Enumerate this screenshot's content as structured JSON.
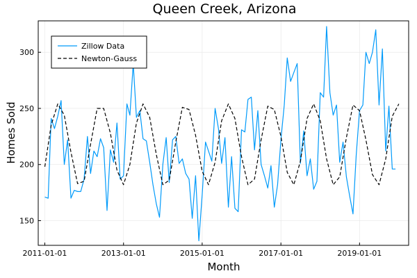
{
  "chart_data": {
    "type": "line",
    "title": "Queen Creek, Arizona",
    "xlabel": "Month",
    "ylabel": "Homes Sold",
    "x_ticks": [
      "2011-01-01",
      "2013-01-01",
      "2015-01-01",
      "2017-01-01",
      "2019-01-01"
    ],
    "y_ticks": [
      150,
      200,
      250,
      300
    ],
    "xlim": [
      "2010-11-01",
      "2020-04-01"
    ],
    "ylim": [
      128,
      328
    ],
    "grid": true,
    "legend": {
      "position": "top-left",
      "entries": [
        "Zillow Data",
        "Newton-Gauss"
      ]
    },
    "series": [
      {
        "name": "Zillow Data",
        "style": "solid",
        "color": "#009AFA",
        "x": [
          "2011-01-01",
          "2011-02-01",
          "2011-03-01",
          "2011-04-01",
          "2011-05-01",
          "2011-06-01",
          "2011-07-01",
          "2011-08-01",
          "2011-09-01",
          "2011-10-01",
          "2011-11-01",
          "2011-12-01",
          "2012-01-01",
          "2012-02-01",
          "2012-03-01",
          "2012-04-01",
          "2012-05-01",
          "2012-06-01",
          "2012-07-01",
          "2012-08-01",
          "2012-09-01",
          "2012-10-01",
          "2012-11-01",
          "2012-12-01",
          "2013-01-01",
          "2013-02-01",
          "2013-03-01",
          "2013-04-01",
          "2013-05-01",
          "2013-06-01",
          "2013-07-01",
          "2013-08-01",
          "2013-09-01",
          "2013-10-01",
          "2013-11-01",
          "2013-12-01",
          "2014-01-01",
          "2014-02-01",
          "2014-03-01",
          "2014-04-01",
          "2014-05-01",
          "2014-06-01",
          "2014-07-01",
          "2014-08-01",
          "2014-09-01",
          "2014-10-01",
          "2014-11-01",
          "2014-12-01",
          "2015-01-01",
          "2015-02-01",
          "2015-03-01",
          "2015-04-01",
          "2015-05-01",
          "2015-06-01",
          "2015-07-01",
          "2015-08-01",
          "2015-09-01",
          "2015-10-01",
          "2015-11-01",
          "2015-12-01",
          "2016-01-01",
          "2016-02-01",
          "2016-03-01",
          "2016-04-01",
          "2016-05-01",
          "2016-06-01",
          "2016-07-01",
          "2016-08-01",
          "2016-09-01",
          "2016-10-01",
          "2016-11-01",
          "2016-12-01",
          "2017-01-01",
          "2017-02-01",
          "2017-03-01",
          "2017-04-01",
          "2017-05-01",
          "2017-06-01",
          "2017-07-01",
          "2017-08-01",
          "2017-09-01",
          "2017-10-01",
          "2017-11-01",
          "2017-12-01",
          "2018-01-01",
          "2018-02-01",
          "2018-03-01",
          "2018-04-01",
          "2018-05-01",
          "2018-06-01",
          "2018-07-01",
          "2018-08-01",
          "2018-09-01",
          "2018-10-01",
          "2018-11-01",
          "2018-12-01",
          "2019-01-01",
          "2019-02-01",
          "2019-03-01",
          "2019-04-01",
          "2019-05-01",
          "2019-06-01",
          "2019-07-01",
          "2019-08-01",
          "2019-09-01",
          "2019-10-01",
          "2019-11-01",
          "2019-12-01"
        ],
        "values": [
          171,
          170,
          241,
          232,
          243,
          257,
          200,
          222,
          170,
          177,
          176,
          176,
          187,
          225,
          192,
          212,
          207,
          223,
          215,
          159,
          213,
          202,
          237,
          187,
          190,
          254,
          244,
          290,
          242,
          248,
          223,
          221,
          202,
          182,
          165,
          153,
          200,
          224,
          184,
          222,
          225,
          201,
          205,
          192,
          187,
          152,
          190,
          132,
          173,
          220,
          212,
          203,
          250,
          232,
          201,
          224,
          162,
          207,
          161,
          158,
          231,
          229,
          258,
          260,
          213,
          248,
          200,
          190,
          179,
          199,
          162,
          182,
          222,
          253,
          295,
          274,
          282,
          290,
          201,
          230,
          190,
          205,
          178,
          185,
          264,
          260,
          323,
          264,
          244,
          253,
          202,
          220,
          189,
          172,
          156,
          208,
          248,
          253,
          300,
          290,
          300,
          320,
          253,
          303,
          212,
          252,
          196,
          196
        ]
      },
      {
        "name": "Newton-Gauss",
        "style": "dashed",
        "color": "#000000",
        "x": [
          "2011-01-01",
          "2011-03-01",
          "2011-05-01",
          "2011-07-01",
          "2011-09-01",
          "2011-11-01",
          "2012-01-01",
          "2012-03-01",
          "2012-05-01",
          "2012-07-01",
          "2012-09-01",
          "2012-11-01",
          "2013-01-01",
          "2013-03-01",
          "2013-05-01",
          "2013-07-01",
          "2013-09-01",
          "2013-11-01",
          "2014-01-01",
          "2014-03-01",
          "2014-05-01",
          "2014-07-01",
          "2014-09-01",
          "2014-11-01",
          "2015-01-01",
          "2015-03-01",
          "2015-05-01",
          "2015-07-01",
          "2015-09-01",
          "2015-11-01",
          "2016-01-01",
          "2016-03-01",
          "2016-05-01",
          "2016-07-01",
          "2016-09-01",
          "2016-11-01",
          "2017-01-01",
          "2017-03-01",
          "2017-05-01",
          "2017-07-01",
          "2017-09-01",
          "2017-11-01",
          "2018-01-01",
          "2018-03-01",
          "2018-05-01",
          "2018-07-01",
          "2018-09-01",
          "2018-11-01",
          "2019-01-01",
          "2019-03-01",
          "2019-05-01",
          "2019-07-01",
          "2019-09-01",
          "2019-11-01",
          "2020-01-01"
        ],
        "values": [
          198,
          235,
          254,
          244,
          211,
          183,
          185,
          218,
          250,
          250,
          228,
          195,
          182,
          200,
          237,
          254,
          242,
          209,
          182,
          186,
          220,
          251,
          249,
          226,
          194,
          182,
          202,
          239,
          254,
          241,
          207,
          182,
          187,
          222,
          252,
          249,
          225,
          193,
          182,
          203,
          241,
          254,
          239,
          205,
          182,
          189,
          224,
          253,
          248,
          222,
          191,
          182,
          205,
          243,
          254
        ]
      }
    ]
  }
}
